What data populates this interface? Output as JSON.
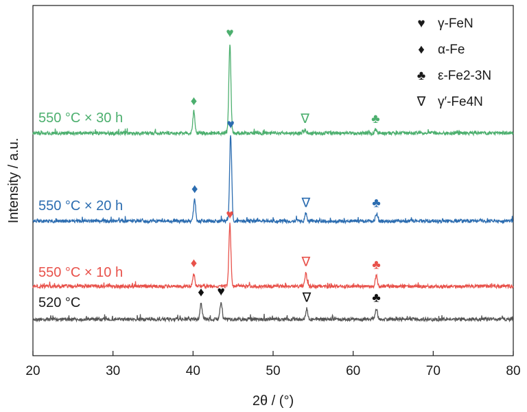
{
  "chart_data": {
    "type": "line",
    "xlabel": "2θ / (°)",
    "ylabel": "Intensity / a.u.",
    "xlim": [
      20,
      80
    ],
    "x_ticks": [
      20,
      30,
      40,
      50,
      60,
      70,
      80
    ],
    "grid": false,
    "legend_placement": "top-right",
    "legend": [
      {
        "symbol": "♥",
        "phase": "γ-FeN"
      },
      {
        "symbol": "♦",
        "phase": "α-Fe"
      },
      {
        "symbol": "♣",
        "phase": "ε-Fe2-3N"
      },
      {
        "symbol": "∇",
        "phase": "γ′-Fe4N"
      }
    ],
    "series": [
      {
        "name": "520 °C",
        "label": "520 °C",
        "color": "#555555",
        "peaks": [
          {
            "x": 41.0,
            "height": 0.9
          },
          {
            "x": 43.5,
            "height": 0.95
          },
          {
            "x": 54.2,
            "height": 0.6
          },
          {
            "x": 62.9,
            "height": 0.6
          }
        ],
        "markers": [
          {
            "x": 41.0,
            "symbol": "♦"
          },
          {
            "x": 43.5,
            "symbol": "♥"
          },
          {
            "x": 54.2,
            "symbol": "∇"
          },
          {
            "x": 62.9,
            "symbol": "♣"
          }
        ]
      },
      {
        "name": "550 °C × 10 h",
        "label": "550 °C × 10 h",
        "color": "#e8514a",
        "peaks": [
          {
            "x": 40.1,
            "height": 0.7
          },
          {
            "x": 44.6,
            "height": 3.4
          },
          {
            "x": 54.1,
            "height": 0.75
          },
          {
            "x": 62.9,
            "height": 0.6
          }
        ],
        "markers": [
          {
            "x": 40.1,
            "symbol": "♦"
          },
          {
            "x": 44.6,
            "symbol": "♥"
          },
          {
            "x": 54.1,
            "symbol": "∇"
          },
          {
            "x": 62.9,
            "symbol": "♣"
          }
        ]
      },
      {
        "name": "550 °C × 20 h",
        "label": "550 °C × 20 h",
        "color": "#2b6cb0",
        "peaks": [
          {
            "x": 40.2,
            "height": 1.2
          },
          {
            "x": 44.7,
            "height": 4.8
          },
          {
            "x": 54.1,
            "height": 0.4
          },
          {
            "x": 62.9,
            "height": 0.4
          }
        ],
        "markers": [
          {
            "x": 40.2,
            "symbol": "♦"
          },
          {
            "x": 44.7,
            "symbol": "♥"
          },
          {
            "x": 54.1,
            "symbol": "∇"
          },
          {
            "x": 62.9,
            "symbol": "♣"
          }
        ]
      },
      {
        "name": "550 °C × 30 h",
        "label": "550 °C × 30 h",
        "color": "#4caf6e",
        "peaks": [
          {
            "x": 40.1,
            "height": 1.2
          },
          {
            "x": 44.6,
            "height": 5.0
          },
          {
            "x": 54.0,
            "height": 0.2
          },
          {
            "x": 62.8,
            "height": 0.2
          }
        ],
        "markers": [
          {
            "x": 40.1,
            "symbol": "♦"
          },
          {
            "x": 44.6,
            "symbol": "♥"
          },
          {
            "x": 54.0,
            "symbol": "∇"
          },
          {
            "x": 62.8,
            "symbol": "♣"
          }
        ]
      }
    ]
  }
}
